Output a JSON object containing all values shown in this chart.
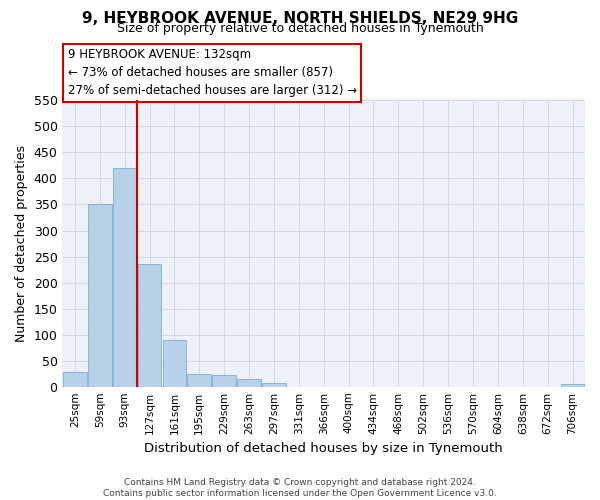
{
  "title": "9, HEYBROOK AVENUE, NORTH SHIELDS, NE29 9HG",
  "subtitle": "Size of property relative to detached houses in Tynemouth",
  "xlabel": "Distribution of detached houses by size in Tynemouth",
  "ylabel": "Number of detached properties",
  "bar_labels": [
    "25sqm",
    "59sqm",
    "93sqm",
    "127sqm",
    "161sqm",
    "195sqm",
    "229sqm",
    "263sqm",
    "297sqm",
    "331sqm",
    "366sqm",
    "400sqm",
    "434sqm",
    "468sqm",
    "502sqm",
    "536sqm",
    "570sqm",
    "604sqm",
    "638sqm",
    "672sqm",
    "706sqm"
  ],
  "bar_values": [
    28,
    350,
    420,
    236,
    90,
    25,
    22,
    14,
    8,
    0,
    0,
    0,
    0,
    0,
    0,
    0,
    0,
    0,
    0,
    0,
    5
  ],
  "bar_color": "#b8d0e8",
  "bar_edge_color": "#7aadd4",
  "vline_x": 2.5,
  "vline_color": "#cc0000",
  "ylim": [
    0,
    550
  ],
  "yticks": [
    0,
    50,
    100,
    150,
    200,
    250,
    300,
    350,
    400,
    450,
    500,
    550
  ],
  "annotation_title": "9 HEYBROOK AVENUE: 132sqm",
  "annotation_line1": "← 73% of detached houses are smaller (857)",
  "annotation_line2": "27% of semi-detached houses are larger (312) →",
  "footer_line1": "Contains HM Land Registry data © Crown copyright and database right 2024.",
  "footer_line2": "Contains public sector information licensed under the Open Government Licence v3.0.",
  "bg_color": "#ffffff",
  "grid_color": "#d0d8e8"
}
